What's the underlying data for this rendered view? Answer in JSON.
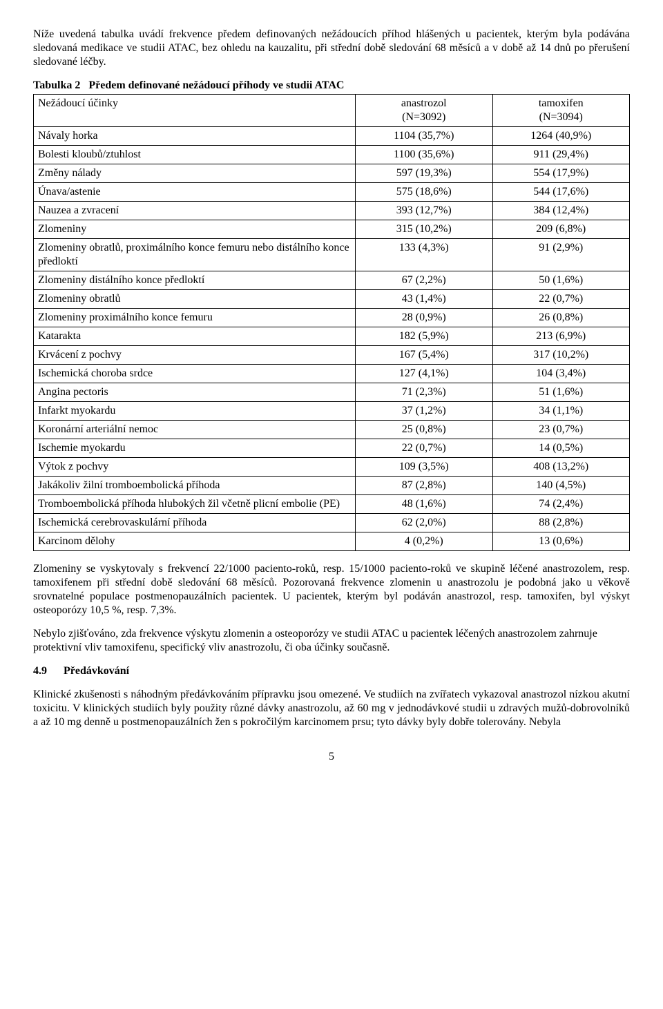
{
  "intro_paragraph": "Níže uvedená tabulka uvádí frekvence předem definovaných nežádoucích příhod hlášených u pacientek, kterým byla podávána sledovaná medikace ve studii ATAC, bez ohledu na kauzalitu, při střední době sledování 68 měsíců a v době až 14 dnů po přerušení sledované léčby.",
  "table": {
    "caption_prefix": "Tabulka 2",
    "caption_rest": "Předem definované nežádoucí příhody ve studii ATAC",
    "header": {
      "col_a": "Nežádoucí účinky",
      "col_b_line1": "anastrozol",
      "col_b_line2": "(N=3092)",
      "col_c_line1": "tamoxifen",
      "col_c_line2": "(N=3094)"
    },
    "rows": [
      {
        "a": "Návaly horka",
        "b": "1104 (35,7%)",
        "c": "1264 (40,9%)"
      },
      {
        "a": "Bolesti kloubů/ztuhlost",
        "b": "1100 (35,6%)",
        "c": "911 (29,4%)"
      },
      {
        "a": "Změny nálady",
        "b": "597 (19,3%)",
        "c": "554 (17,9%)"
      },
      {
        "a": "Únava/astenie",
        "b": "575 (18,6%)",
        "c": "544 (17,6%)"
      },
      {
        "a": "Nauzea a zvracení",
        "b": "393 (12,7%)",
        "c": "384 (12,4%)"
      },
      {
        "a": "Zlomeniny",
        "b": "315 (10,2%)",
        "c": "209 (6,8%)"
      },
      {
        "a": "Zlomeniny obratlů, proximálního konce femuru nebo distálního konce předloktí",
        "b": "133 (4,3%)",
        "c": "91 (2,9%)"
      },
      {
        "a": "Zlomeniny distálního konce předloktí",
        "b": "67 (2,2%)",
        "c": "50 (1,6%)"
      },
      {
        "a": "Zlomeniny obratlů",
        "b": "43 (1,4%)",
        "c": "22 (0,7%)"
      },
      {
        "a": "Zlomeniny proximálního konce femuru",
        "b": "28 (0,9%)",
        "c": "26 (0,8%)"
      },
      {
        "a": "Katarakta",
        "b": "182 (5,9%)",
        "c": "213 (6,9%)"
      },
      {
        "a": "Krvácení z pochvy",
        "b": "167 (5,4%)",
        "c": "317 (10,2%)"
      },
      {
        "a": "Ischemická choroba srdce",
        "b": "127 (4,1%)",
        "c": "104 (3,4%)"
      },
      {
        "a": "Angina pectoris",
        "b": "71 (2,3%)",
        "c": "51 (1,6%)"
      },
      {
        "a": "Infarkt myokardu",
        "b": "37 (1,2%)",
        "c": "34 (1,1%)"
      },
      {
        "a": "Koronární arteriální nemoc",
        "b": "25 (0,8%)",
        "c": "23 (0,7%)"
      },
      {
        "a": "Ischemie myokardu",
        "b": "22 (0,7%)",
        "c": "14 (0,5%)"
      },
      {
        "a": "Výtok z pochvy",
        "b": "109 (3,5%)",
        "c": "408 (13,2%)"
      },
      {
        "a": "Jakákoliv žilní tromboembolická příhoda",
        "b": "87 (2,8%)",
        "c": "140 (4,5%)"
      },
      {
        "a": "Tromboembolická příhoda hlubokých žil včetně plicní embolie (PE)",
        "b": "48 (1,6%)",
        "c": "74 (2,4%)"
      },
      {
        "a": "Ischemická cerebrovaskulární příhoda",
        "b": "62 (2,0%)",
        "c": "88 (2,8%)"
      },
      {
        "a": "Karcinom dělohy",
        "b": "4 (0,2%)",
        "c": "13 (0,6%)"
      }
    ]
  },
  "para2": "Zlomeniny se vyskytovaly s frekvencí 22/1000 paciento-roků, resp. 15/1000 paciento-roků ve skupině léčené anastrozolem, resp. tamoxifenem při střední době sledování 68 měsíců. Pozorovaná frekvence zlomenin u anastrozolu je podobná jako u věkově srovnatelné populace postmenopauzálních pacientek. U pacientek, kterým byl podáván anastrozol, resp. tamoxifen, byl výskyt osteoporózy 10,5 %, resp. 7,3%.",
  "para3": "Nebylo zjišťováno, zda frekvence výskytu zlomenin a osteoporózy ve studii ATAC u pacientek léčených anastrozolem zahrnuje protektivní vliv tamoxifenu, specifický vliv anastrozolu, či oba účinky současně.",
  "section": {
    "num": "4.9",
    "title": "Předávkování"
  },
  "para4": "Klinické zkušenosti s náhodným předávkováním přípravku jsou omezené. Ve studiích na zvířatech vykazoval anastrozol nízkou akutní toxicitu. V klinických studiích byly použity různé dávky anastrozolu, až 60 mg v jednodávkové studii u zdravých mužů-dobrovolníků a až 10 mg denně u postmenopauzálních žen s pokročilým karcinomem prsu; tyto dávky byly dobře tolerovány. Nebyla",
  "page_number": "5",
  "layout": {
    "col_a_width_pct": 54,
    "col_b_width_pct": 23,
    "col_c_width_pct": 23
  }
}
